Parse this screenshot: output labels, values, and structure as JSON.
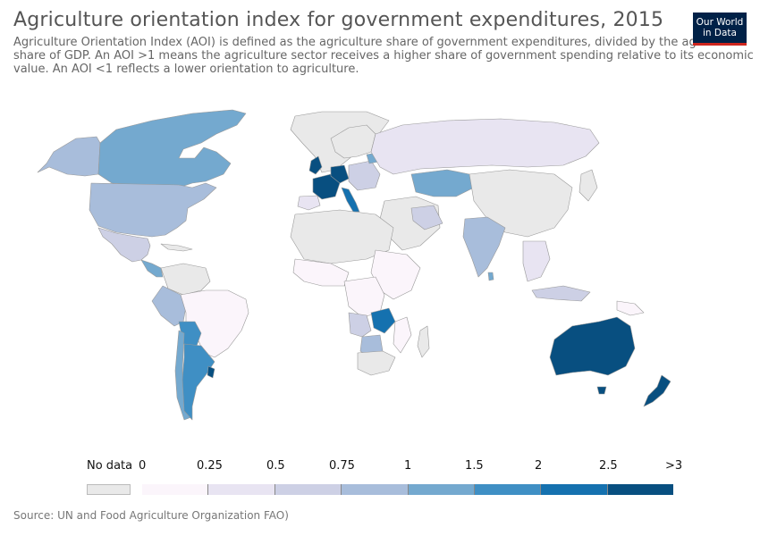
{
  "header": {
    "title": "Agriculture orientation index for government expenditures, 2015",
    "subtitle": "Agriculture Orientation Index (AOI) is defined as the agriculture share of government expenditures, divided by the agriculture share of GDP. An AOI >1 means the agriculture sector receives a higher share of government spending relative to its economic value. An AOI <1 reflects a lower orientation to agriculture.",
    "logo_line1": "Our World",
    "logo_line2": "in Data"
  },
  "legend": {
    "no_data_label": "No data",
    "ticks": [
      "0",
      "0.25",
      "0.5",
      "0.75",
      "1",
      "1.5",
      "2",
      "2.5",
      ">3"
    ],
    "colors": [
      "#fbf5fb",
      "#e8e4f2",
      "#cdd0e5",
      "#a8bddb",
      "#74a9cf",
      "#3f8fc4",
      "#1571af",
      "#084f80"
    ],
    "no_data_color": "#e9e9e9"
  },
  "footer": {
    "source": "Source: UN and Food Agriculture Organization FAO)"
  }
}
